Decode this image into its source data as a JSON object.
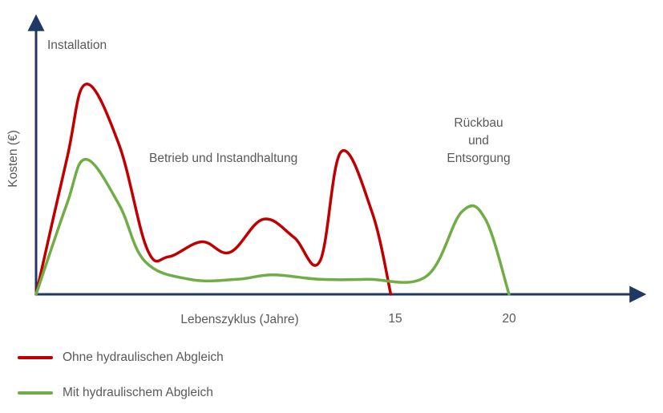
{
  "chart_data": {
    "type": "line",
    "xlabel": "Lebenszyklus (Jahre)",
    "ylabel": "Kosten (€)",
    "x_ticks": [
      15,
      20
    ],
    "annotations": {
      "installation": "Installation",
      "operation": "Betrieb und Instandhaltung",
      "dismantling": [
        "Rückbau",
        "und",
        "Entsorgung"
      ]
    },
    "series": [
      {
        "name": "Ohne hydraulischen Abgleich",
        "color": "#c00000",
        "points": [
          [
            0,
            0
          ],
          [
            1.3,
            0.9
          ],
          [
            2.1,
            1.4
          ],
          [
            3.5,
            1.0
          ],
          [
            4.7,
            0.3
          ],
          [
            5.6,
            0.25
          ],
          [
            7.0,
            0.35
          ],
          [
            8.2,
            0.28
          ],
          [
            9.6,
            0.5
          ],
          [
            10.9,
            0.38
          ],
          [
            12.0,
            0.22
          ],
          [
            12.9,
            0.95
          ],
          [
            14.2,
            0.55
          ],
          [
            15.0,
            0.0
          ]
        ]
      },
      {
        "name": "Mit hydraulischem Abgleich",
        "color": "#70ad47",
        "points": [
          [
            0,
            0
          ],
          [
            1.3,
            0.6
          ],
          [
            2.1,
            0.9
          ],
          [
            3.5,
            0.6
          ],
          [
            4.6,
            0.22
          ],
          [
            6.5,
            0.1
          ],
          [
            8.5,
            0.1
          ],
          [
            10.0,
            0.13
          ],
          [
            12.0,
            0.1
          ],
          [
            14.0,
            0.1
          ],
          [
            16.5,
            0.12
          ],
          [
            18.0,
            0.55
          ],
          [
            19.0,
            0.5
          ],
          [
            20.0,
            0.0
          ]
        ]
      }
    ],
    "colors": {
      "axis": "#1f3864",
      "text": "#595959"
    }
  }
}
